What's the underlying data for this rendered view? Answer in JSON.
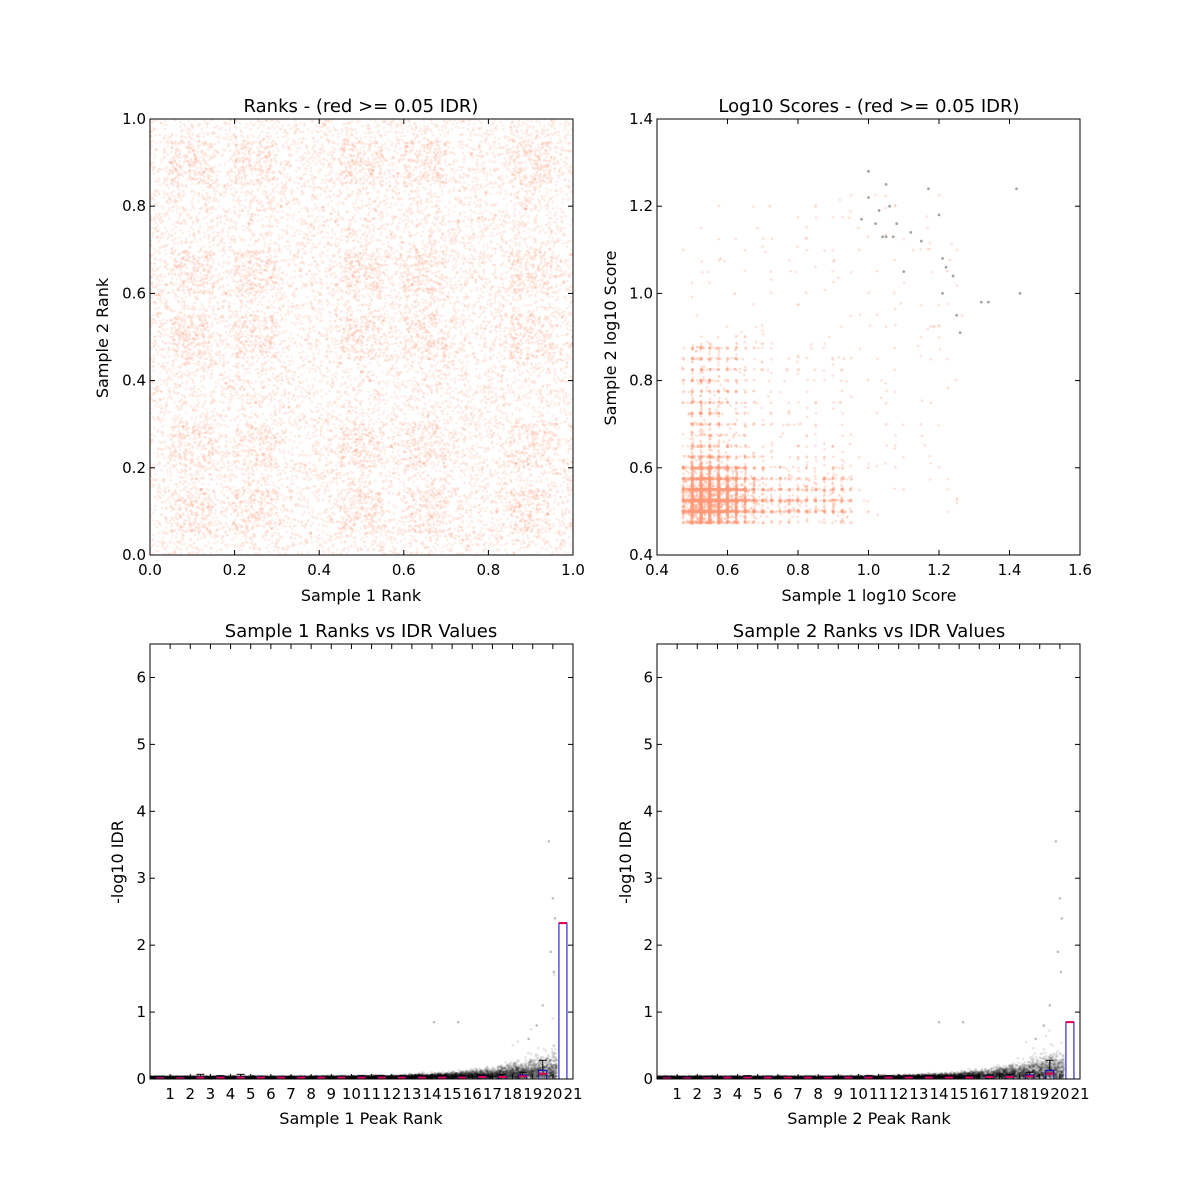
{
  "colors": {
    "pass": "#ff9a7a",
    "fail": "#666666",
    "points": "#000000",
    "median": "#e0004a",
    "box": "#0000cc",
    "frame": "#000000",
    "background": "#ffffff"
  },
  "chart_data": [
    {
      "type": "scatter",
      "title": "Ranks - (red >= 0.05 IDR)",
      "xlabel": "Sample 1 Rank",
      "ylabel": "Sample 2 Rank",
      "xlim": [
        0.0,
        1.0
      ],
      "ylim": [
        0.0,
        1.0
      ],
      "xticks": [
        "0.0",
        "0.2",
        "0.4",
        "0.6",
        "0.8",
        "1.0"
      ],
      "yticks": [
        "0.0",
        "0.2",
        "0.4",
        "0.6",
        "0.8",
        "1.0"
      ],
      "grid": false,
      "series": [
        {
          "color": "pass",
          "opacity": 0.18,
          "count": 16000,
          "distribution": "uniform over [0,1]x[0,1] with denser square blocks",
          "x": [
            0.05,
            0.12,
            0.18,
            0.25,
            0.31,
            0.38,
            0.44,
            0.5,
            0.57,
            0.63,
            0.7,
            0.76,
            0.82,
            0.9,
            0.96,
            0.45,
            0.48,
            0.52,
            0.62,
            0.66
          ],
          "y": [
            0.9,
            0.15,
            0.6,
            0.35,
            0.8,
            0.05,
            0.62,
            0.42,
            0.25,
            0.7,
            0.48,
            0.92,
            0.1,
            0.55,
            0.3,
            0.44,
            0.64,
            0.4,
            0.62,
            0.45
          ]
        }
      ]
    },
    {
      "type": "scatter",
      "title": "Log10 Scores - (red >= 0.05 IDR)",
      "xlabel": "Sample 1 log10 Score",
      "ylabel": "Sample 2 log10 Score",
      "xlim": [
        0.4,
        1.6
      ],
      "ylim": [
        0.4,
        1.4
      ],
      "xticks": [
        "0.4",
        "0.6",
        "0.8",
        "1.0",
        "1.2",
        "1.4",
        "1.6"
      ],
      "yticks": [
        "0.4",
        "0.6",
        "0.8",
        "1.0",
        "1.2",
        "1.4"
      ],
      "grid": false,
      "series": [
        {
          "color": "pass",
          "opacity": 0.3,
          "count": 9000,
          "distribution": "dense near (0.47-0.95, 0.47-0.9), sparse tail toward 1.3",
          "x": [
            0.48,
            0.52,
            0.55,
            0.6,
            0.62,
            0.65,
            0.7,
            0.75,
            0.8,
            0.85,
            0.9,
            0.93,
            1.0,
            1.05,
            1.1,
            0.62,
            0.58,
            0.72
          ],
          "y": [
            0.5,
            0.62,
            0.8,
            0.55,
            0.7,
            0.9,
            0.6,
            0.52,
            0.65,
            0.75,
            0.58,
            0.85,
            0.6,
            0.7,
            0.55,
            1.0,
            1.08,
            1.2
          ]
        },
        {
          "color": "fail",
          "opacity": 0.6,
          "count": 26,
          "x": [
            1.0,
            1.05,
            1.03,
            1.06,
            1.08,
            1.05,
            1.17,
            1.2,
            1.21,
            1.24,
            1.25,
            1.26,
            1.21,
            1.32,
            1.34,
            1.42,
            1.43,
            1.0,
            1.12,
            1.07,
            1.04,
            1.1,
            0.98,
            1.15,
            1.22,
            1.02
          ],
          "y": [
            1.28,
            1.25,
            1.19,
            1.2,
            1.16,
            1.13,
            1.24,
            1.18,
            1.08,
            1.04,
            0.95,
            0.91,
            1.0,
            0.98,
            0.98,
            1.24,
            1.0,
            1.22,
            1.14,
            1.13,
            1.13,
            1.05,
            1.17,
            1.12,
            1.06,
            1.16
          ]
        }
      ]
    },
    {
      "type": "scatter",
      "title": "Sample 1 Ranks vs IDR Values",
      "xlabel": "Sample 1 Peak Rank",
      "ylabel": "-log10 IDR",
      "xlim": [
        0,
        21
      ],
      "ylim": [
        0,
        6.5
      ],
      "xticks": [
        "1",
        "2",
        "3",
        "4",
        "5",
        "6",
        "7",
        "8",
        "9",
        "10",
        "11",
        "12",
        "13",
        "14",
        "15",
        "16",
        "17",
        "18",
        "19",
        "20",
        "21"
      ],
      "yticks": [
        "0",
        "1",
        "2",
        "3",
        "4",
        "5",
        "6"
      ],
      "grid": false,
      "points": {
        "color": "points",
        "opacity": 0.1,
        "count": 9000,
        "x": [
          19.8,
          20.0,
          20.1,
          19.9,
          20.05,
          14.1,
          15.3,
          19.5,
          19.2,
          18.8
        ],
        "y": [
          3.55,
          2.7,
          2.4,
          1.9,
          1.6,
          0.85,
          0.85,
          1.1,
          0.8,
          0.6
        ]
      },
      "medians": [
        0.01,
        0.01,
        0.02,
        0.02,
        0.02,
        0.02,
        0.02,
        0.02,
        0.02,
        0.02,
        0.02,
        0.02,
        0.02,
        0.02,
        0.02,
        0.02,
        0.03,
        0.03,
        0.04,
        0.08,
        2.33
      ],
      "upper_whisker": [
        0.03,
        0.03,
        0.07,
        0.05,
        0.07,
        0.04,
        0.04,
        0.04,
        0.04,
        0.04,
        0.05,
        0.05,
        0.05,
        0.05,
        0.05,
        0.05,
        0.06,
        0.07,
        0.1,
        0.28,
        2.33
      ],
      "box_q3": [
        0.02,
        0.02,
        0.03,
        0.03,
        0.03,
        0.03,
        0.03,
        0.03,
        0.03,
        0.03,
        0.03,
        0.03,
        0.03,
        0.03,
        0.03,
        0.03,
        0.04,
        0.04,
        0.06,
        0.13,
        2.33
      ]
    },
    {
      "type": "scatter",
      "title": "Sample 2 Ranks vs IDR Values",
      "xlabel": "Sample 2 Peak Rank",
      "ylabel": "-log10 IDR",
      "xlim": [
        0,
        21
      ],
      "ylim": [
        0,
        6.5
      ],
      "xticks": [
        "1",
        "2",
        "3",
        "4",
        "5",
        "6",
        "7",
        "8",
        "9",
        "10",
        "11",
        "12",
        "13",
        "14",
        "15",
        "16",
        "17",
        "18",
        "19",
        "20",
        "21"
      ],
      "yticks": [
        "0",
        "1",
        "2",
        "3",
        "4",
        "5",
        "6"
      ],
      "grid": false,
      "points": {
        "color": "points",
        "opacity": 0.1,
        "count": 9000,
        "x": [
          19.8,
          20.0,
          20.1,
          19.9,
          20.05,
          14.0,
          15.2,
          19.5,
          19.2,
          18.8
        ],
        "y": [
          3.55,
          2.7,
          2.4,
          1.9,
          1.6,
          0.85,
          0.85,
          1.1,
          0.8,
          0.6
        ]
      },
      "medians": [
        0.01,
        0.01,
        0.01,
        0.02,
        0.02,
        0.02,
        0.02,
        0.02,
        0.02,
        0.02,
        0.02,
        0.02,
        0.02,
        0.02,
        0.02,
        0.02,
        0.03,
        0.03,
        0.04,
        0.08,
        0.85
      ],
      "upper_whisker": [
        0.03,
        0.03,
        0.04,
        0.04,
        0.05,
        0.04,
        0.04,
        0.04,
        0.04,
        0.04,
        0.05,
        0.05,
        0.05,
        0.05,
        0.05,
        0.05,
        0.06,
        0.07,
        0.1,
        0.28,
        0.85
      ],
      "box_q3": [
        0.02,
        0.02,
        0.02,
        0.03,
        0.03,
        0.03,
        0.03,
        0.03,
        0.03,
        0.03,
        0.03,
        0.03,
        0.03,
        0.03,
        0.03,
        0.03,
        0.04,
        0.04,
        0.06,
        0.13,
        0.85
      ]
    }
  ]
}
